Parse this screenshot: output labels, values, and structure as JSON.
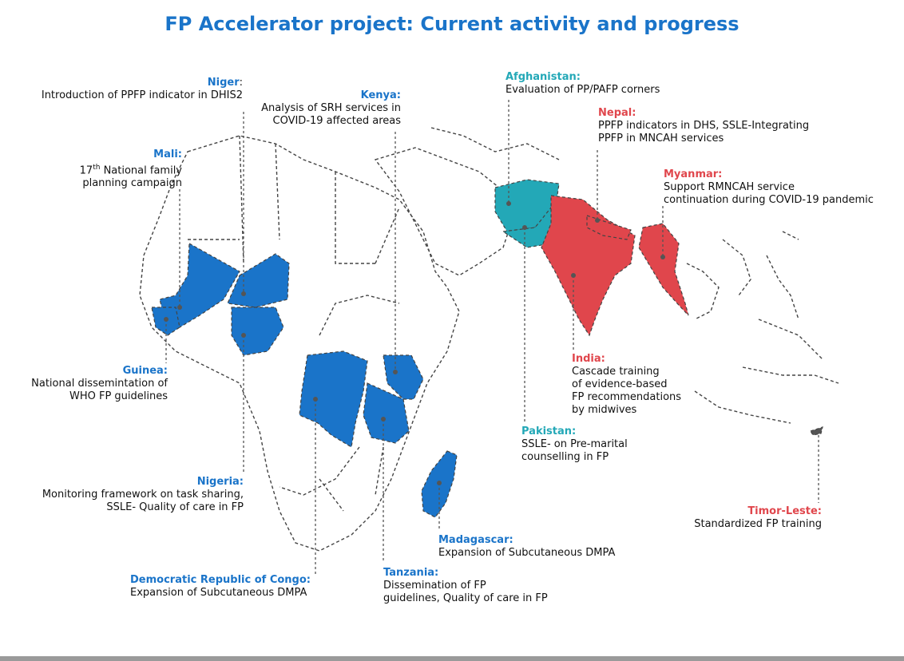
{
  "title": "FP Accelerator project: Current activity and progress",
  "colors": {
    "blue": "#1a74c9",
    "teal": "#23a8b7",
    "red": "#e0464c",
    "border": "#444444"
  },
  "annotations": {
    "niger": {
      "country": "Niger",
      "colon": ":",
      "text": [
        "Introduction of PPFP indicator in DHIS2"
      ]
    },
    "kenya": {
      "country": "Kenya:",
      "text": [
        "Analysis of SRH services in",
        "COVID-19 affected areas"
      ]
    },
    "mali": {
      "country": "Mali:",
      "text": [
        "17",
        "th",
        " National family",
        "planning campaign"
      ]
    },
    "guinea": {
      "country": "Guinea:",
      "text": [
        "National dissemintation of",
        "WHO FP guidelines"
      ]
    },
    "nigeria": {
      "country": "Nigeria:",
      "text": [
        "Monitoring framework on task sharing,",
        "SSLE- Quality of care in FP"
      ]
    },
    "drc": {
      "country": "Democratic Republic of Congo:",
      "text": [
        "Expansion of Subcutaneous DMPA"
      ]
    },
    "tanzania": {
      "country": "Tanzania:",
      "text": [
        "Dissemination of FP",
        "guidelines, Quality of care in FP"
      ]
    },
    "madagascar": {
      "country": "Madagascar:",
      "text": [
        "Expansion of Subcutaneous DMPA"
      ]
    },
    "afghanistan": {
      "country": "Afghanistan:",
      "text": [
        "Evaluation of PP/PAFP corners"
      ]
    },
    "nepal": {
      "country": "Nepal:",
      "text": [
        "PPFP indicators in DHS, SSLE-Integrating",
        "PPFP in MNCAH services"
      ]
    },
    "myanmar": {
      "country": "Myanmar:",
      "text": [
        "Support RMNCAH service",
        "continuation during COVID-19 pandemic"
      ]
    },
    "india": {
      "country": "India:",
      "text": [
        "Cascade training",
        "of evidence-based",
        "FP recommendations",
        "by midwives"
      ]
    },
    "pakistan": {
      "country": "Pakistan:",
      "text": [
        "SSLE- on Pre-marital",
        "counselling in FP"
      ]
    },
    "timor": {
      "country": "Timor-Leste:",
      "text": [
        "Standardized FP training"
      ]
    }
  }
}
